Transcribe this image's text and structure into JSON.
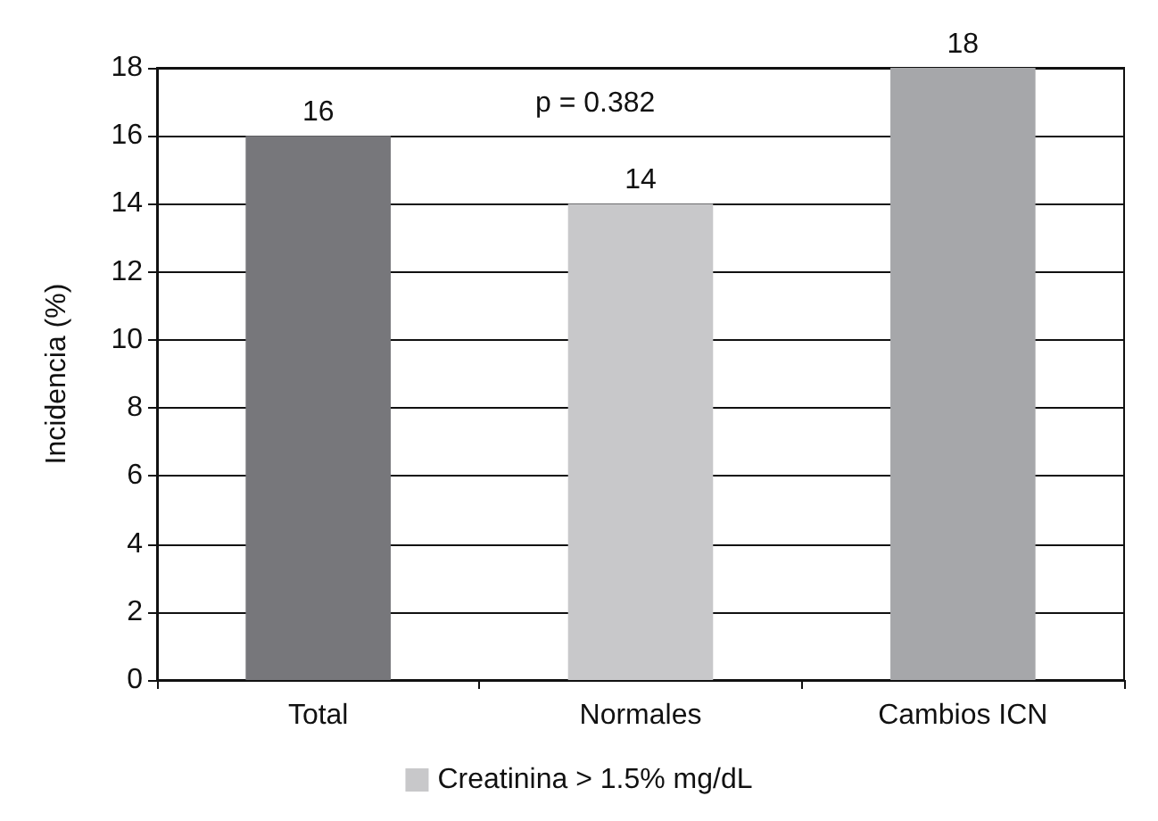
{
  "chart_data": {
    "type": "bar",
    "ylabel": "Incidencia (%)",
    "categories": [
      "Total",
      "Normales",
      "Cambios ICN"
    ],
    "series": [
      {
        "name": "Creatinina > 1.5% mg/dL",
        "color": "#c8c8ca",
        "colors": [
          "#77777b",
          "#c8c8ca",
          "#a6a7aa"
        ],
        "values": [
          16,
          14,
          18
        ]
      }
    ],
    "data_labels": true,
    "ylim": [
      0,
      18
    ],
    "yticks": [
      0,
      2,
      4,
      6,
      8,
      10,
      12,
      14,
      16,
      18
    ],
    "grid": "y",
    "legend": "bottom",
    "annotations": [
      "p = 0.382"
    ]
  }
}
